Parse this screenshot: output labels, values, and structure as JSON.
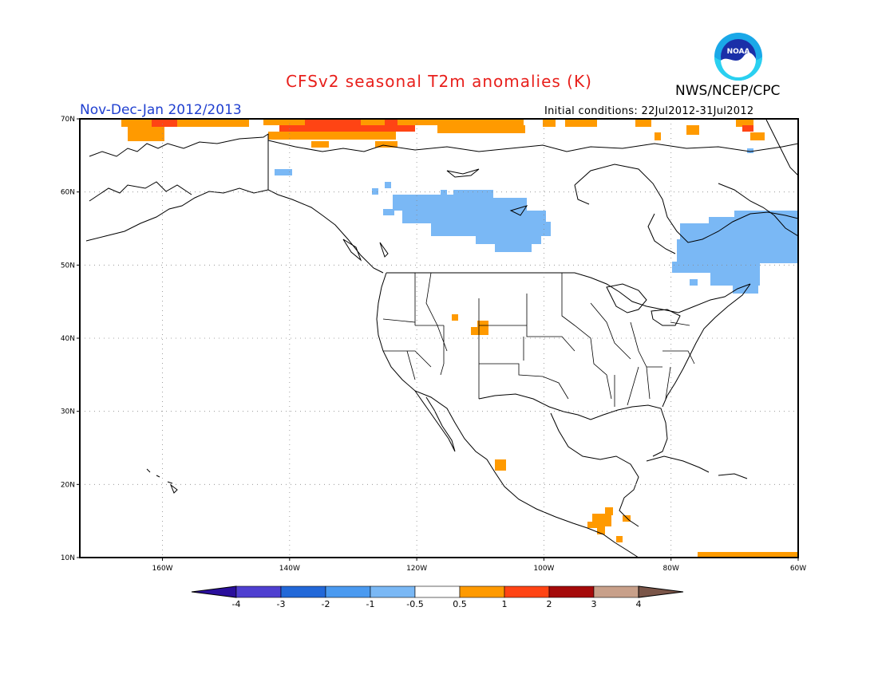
{
  "title": "CFSv2 seasonal T2m anomalies (K)",
  "agency": "NWS/NCEP/CPC",
  "logo_text": "NOAA",
  "period": "Nov-Dec-Jan 2012/2013",
  "initial_conditions": "Initial conditions: 22Jul2012-31Jul2012",
  "map": {
    "lon_range": [
      -173,
      -60
    ],
    "lat_range": [
      10,
      70
    ],
    "lat_ticks": [
      {
        "value": 70,
        "label": "70N"
      },
      {
        "value": 60,
        "label": "60N"
      },
      {
        "value": 50,
        "label": "50N"
      },
      {
        "value": 40,
        "label": "40N"
      },
      {
        "value": 30,
        "label": "30N"
      },
      {
        "value": 20,
        "label": "20N"
      },
      {
        "value": 10,
        "label": "10N"
      }
    ],
    "lon_ticks": [
      {
        "value": -160,
        "label": "160W"
      },
      {
        "value": -140,
        "label": "140W"
      },
      {
        "value": -120,
        "label": "120W"
      },
      {
        "value": -100,
        "label": "100W"
      },
      {
        "value": -80,
        "label": "80W"
      },
      {
        "value": -60,
        "label": "60W"
      }
    ],
    "grid": true
  },
  "colorbar": {
    "labels": [
      "-4",
      "-3",
      "-2",
      "-1",
      "-0.5",
      "0.5",
      "1",
      "2",
      "3",
      "4"
    ],
    "colors": [
      "#2a0f9c",
      "#4f3fd0",
      "#2268d8",
      "#4a9af0",
      "#7ab8f5",
      "#ffffff",
      "#ff9a00",
      "#ff4414",
      "#a50a0a",
      "#c8a08a",
      "#7a5548"
    ]
  },
  "colors": {
    "warm_05_1": "#ff9a00",
    "warm_1_2": "#ff4414",
    "cool_05_1": "#7ab8f5"
  }
}
